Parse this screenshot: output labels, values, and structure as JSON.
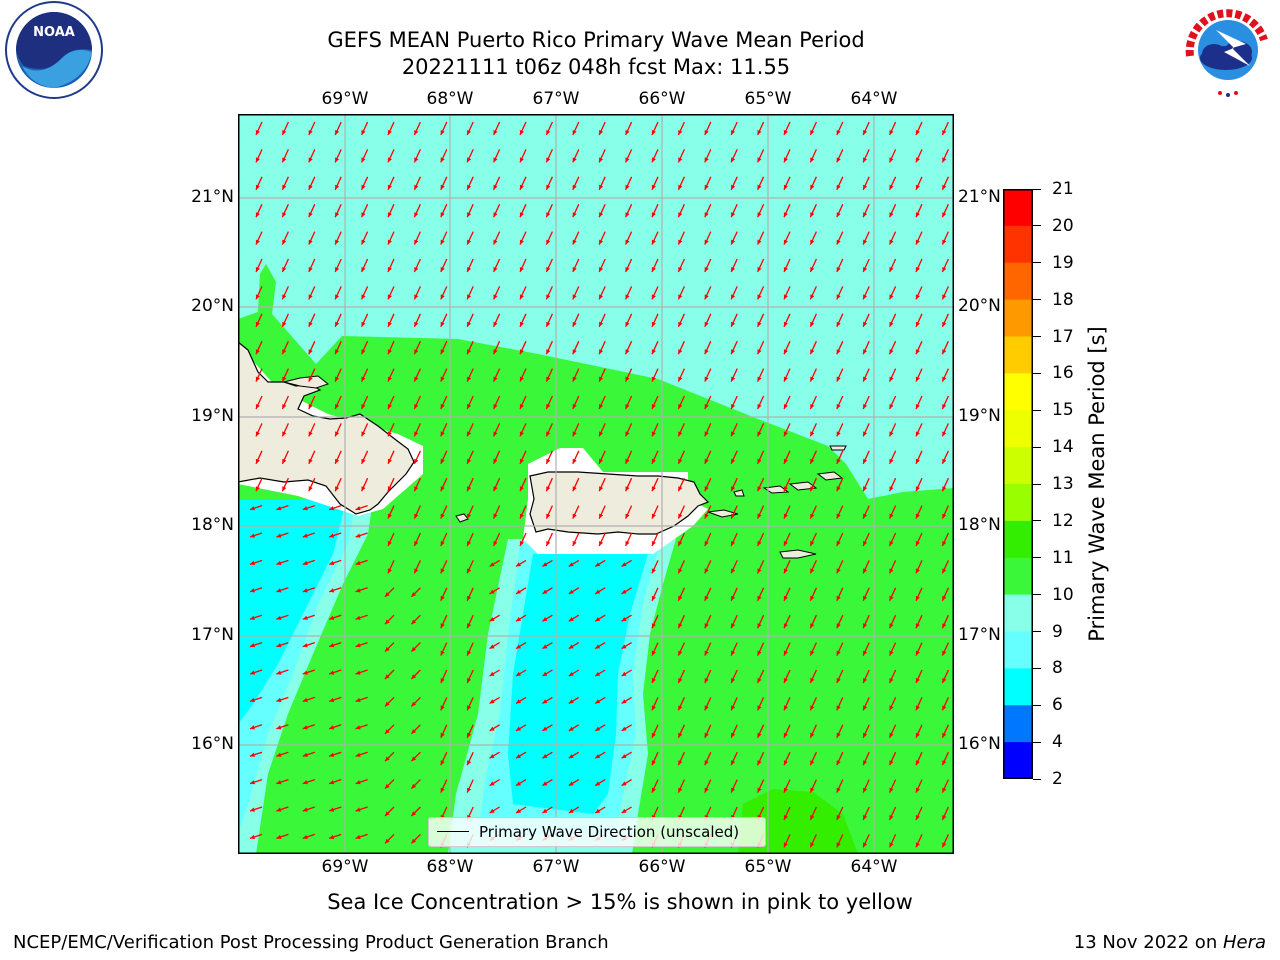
{
  "title": {
    "line1": "GEFS MEAN Puerto Rico Primary Wave Mean Period",
    "line2": "20221111 t06z 048h fcst   Max: 11.55"
  },
  "map": {
    "lon_labels": [
      "69°W",
      "68°W",
      "67°W",
      "66°W",
      "65°W",
      "64°W"
    ],
    "lat_labels": [
      "21°N",
      "20°N",
      "19°N",
      "18°N",
      "17°N",
      "16°N"
    ],
    "legend_text": "Primary Wave Direction (unscaled)",
    "colors": {
      "land": "#eeecdc",
      "ice_free_white": "#ffffff",
      "band_6_8": "#00ffff",
      "band_8_9": "#66ffff",
      "band_9_10": "#88ffe8",
      "band_10_11": "#3af73a",
      "band_11_12": "#33ee00",
      "arrow": "#ff0000",
      "grid": "#b0b0b0"
    }
  },
  "colorbar": {
    "label": "Primary Wave Mean Period [s]",
    "ticks": [
      "21",
      "20",
      "19",
      "18",
      "17",
      "16",
      "15",
      "14",
      "13",
      "12",
      "11",
      "10",
      "9",
      "8",
      "6",
      "4",
      "2"
    ],
    "colors": [
      "#ff0000",
      "#ff3300",
      "#ff6600",
      "#ff9900",
      "#ffcc00",
      "#ffff00",
      "#eeff00",
      "#ccff00",
      "#99ff00",
      "#33ee00",
      "#3af73a",
      "#88ffe8",
      "#66ffff",
      "#00ffff",
      "#0077ff",
      "#0000ff"
    ]
  },
  "note": "Sea Ice Concentration > 15% is shown in pink to yellow",
  "footer": {
    "left": "NCEP/EMC/Verification Post Processing Product Generation Branch",
    "right_prefix": "13 Nov 2022 on ",
    "right_machine": "Hera"
  },
  "logos": {
    "noaa_text": "NOAA",
    "nws_text": "NATIONAL WEATHER SERVICE"
  }
}
